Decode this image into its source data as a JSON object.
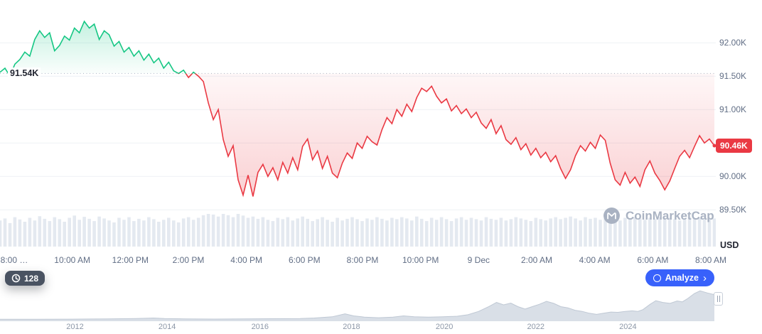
{
  "chart_data": {
    "type": "line",
    "baseline": {
      "label": "91.54K",
      "value": 91.54
    },
    "last": {
      "label": "90.46K",
      "value": 90.46
    },
    "y_unit": "USD",
    "ylim": [
      88.95,
      92.64
    ],
    "y_ticks": [
      {
        "label": "92.00K",
        "value": 92.0
      },
      {
        "label": "91.50K",
        "value": 91.5
      },
      {
        "label": "91.00K",
        "value": 91.0
      },
      {
        "label": "90.00K",
        "value": 90.0
      },
      {
        "label": "89.50K",
        "value": 89.5
      }
    ],
    "grid_values": [
      92.0,
      91.5,
      91.0,
      90.5,
      90.0,
      89.5
    ],
    "x_ticks": [
      "8:00 …",
      "10:00 AM",
      "12:00 PM",
      "2:00 PM",
      "4:00 PM",
      "6:00 PM",
      "8:00 PM",
      "10:00 PM",
      "9 Dec",
      "2:00 AM",
      "4:00 AM",
      "6:00 AM",
      "8:00 AM"
    ],
    "prices": [
      91.56,
      91.62,
      91.5,
      91.68,
      91.75,
      91.86,
      91.8,
      92.05,
      92.18,
      92.08,
      92.15,
      91.88,
      91.96,
      92.1,
      92.04,
      92.22,
      92.15,
      92.32,
      92.22,
      92.28,
      92.05,
      92.18,
      92.12,
      91.95,
      92.02,
      91.86,
      91.93,
      91.8,
      91.88,
      91.74,
      91.83,
      91.7,
      91.77,
      91.62,
      91.71,
      91.58,
      91.54,
      91.59,
      91.48,
      91.56,
      91.5,
      91.42,
      91.1,
      90.85,
      91.0,
      90.55,
      90.3,
      90.46,
      89.95,
      89.72,
      90.02,
      89.7,
      90.06,
      90.18,
      90.0,
      90.13,
      89.95,
      90.21,
      90.05,
      90.28,
      90.1,
      90.45,
      90.56,
      90.25,
      90.38,
      90.12,
      90.3,
      90.05,
      89.98,
      90.2,
      90.35,
      90.27,
      90.5,
      90.42,
      90.6,
      90.52,
      90.47,
      90.7,
      90.88,
      90.79,
      91.0,
      90.9,
      91.08,
      90.97,
      91.18,
      91.32,
      91.27,
      91.35,
      91.2,
      91.1,
      91.16,
      90.98,
      91.06,
      90.94,
      91.01,
      90.88,
      90.96,
      90.8,
      90.72,
      90.85,
      90.64,
      90.76,
      90.55,
      90.48,
      90.58,
      90.4,
      90.49,
      90.32,
      90.42,
      90.28,
      90.36,
      90.22,
      90.31,
      90.12,
      89.97,
      90.1,
      90.31,
      90.46,
      90.38,
      90.51,
      90.42,
      90.62,
      90.54,
      90.2,
      89.95,
      89.87,
      90.06,
      89.9,
      89.99,
      89.85,
      90.1,
      90.23,
      90.05,
      89.94,
      89.8,
      89.93,
      90.12,
      90.3,
      90.39,
      90.28,
      90.45,
      90.61,
      90.5,
      90.56,
      90.46
    ],
    "volume": [
      0.8,
      0.86,
      0.72,
      0.9,
      0.83,
      0.76,
      0.88,
      0.8,
      0.93,
      0.85,
      0.78,
      0.9,
      0.84,
      0.76,
      0.88,
      0.95,
      0.82,
      0.91,
      0.85,
      0.78,
      0.92,
      0.86,
      0.8,
      0.74,
      0.88,
      0.82,
      0.9,
      0.78,
      0.85,
      0.8,
      0.9,
      0.84,
      0.76,
      0.82,
      0.88,
      0.8,
      0.74,
      0.86,
      0.9,
      0.82,
      0.88,
      0.96,
      1.0,
      0.98,
      0.92,
      1.0,
      0.96,
      0.9,
      1.0,
      0.95,
      0.88,
      0.92,
      0.85,
      0.9,
      0.82,
      0.78,
      0.88,
      0.84,
      0.9,
      0.8,
      0.86,
      0.92,
      0.85,
      0.78,
      0.84,
      0.9,
      0.82,
      0.76,
      0.88,
      0.8,
      0.85,
      0.9,
      0.84,
      0.78,
      0.86,
      0.82,
      0.9,
      0.85,
      0.8,
      0.88,
      0.84,
      0.9,
      0.86,
      0.8,
      0.92,
      0.85,
      0.78,
      0.88,
      0.82,
      0.9,
      0.84,
      0.78,
      0.86,
      0.9,
      0.82,
      0.88,
      0.84,
      0.8,
      0.9,
      0.85,
      0.82,
      0.88,
      0.8,
      0.84,
      0.9,
      0.86,
      0.82,
      0.78,
      0.88,
      0.84,
      0.8,
      0.86,
      0.9,
      0.84,
      0.88,
      0.92,
      0.86,
      0.8,
      0.9,
      0.85,
      0.88,
      0.82,
      0.86,
      0.9,
      0.84,
      0.8,
      0.88,
      0.85,
      0.9,
      0.86,
      0.82,
      0.88,
      0.84,
      0.9,
      0.86,
      0.88,
      0.84,
      0.8,
      0.86,
      0.9,
      0.85,
      0.88,
      0.84,
      0.88,
      0.86
    ],
    "brush": {
      "year_ticks": [
        {
          "label": "2012",
          "t": 0.105
        },
        {
          "label": "2014",
          "t": 0.234
        },
        {
          "label": "2016",
          "t": 0.364
        },
        {
          "label": "2018",
          "t": 0.492
        },
        {
          "label": "2020",
          "t": 0.622
        },
        {
          "label": "2022",
          "t": 0.75
        },
        {
          "label": "2024",
          "t": 0.879
        }
      ],
      "points": [
        [
          0,
          0.02
        ],
        [
          0.05,
          0.02
        ],
        [
          0.1,
          0.022
        ],
        [
          0.15,
          0.03
        ],
        [
          0.19,
          0.04
        ],
        [
          0.215,
          0.06
        ],
        [
          0.23,
          0.04
        ],
        [
          0.26,
          0.03
        ],
        [
          0.3,
          0.025
        ],
        [
          0.34,
          0.03
        ],
        [
          0.38,
          0.035
        ],
        [
          0.42,
          0.04
        ],
        [
          0.44,
          0.06
        ],
        [
          0.465,
          0.1
        ],
        [
          0.483,
          0.2
        ],
        [
          0.495,
          0.13
        ],
        [
          0.51,
          0.09
        ],
        [
          0.53,
          0.07
        ],
        [
          0.55,
          0.09
        ],
        [
          0.565,
          0.13
        ],
        [
          0.58,
          0.1
        ],
        [
          0.6,
          0.09
        ],
        [
          0.62,
          0.1
        ],
        [
          0.64,
          0.12
        ],
        [
          0.655,
          0.17
        ],
        [
          0.67,
          0.28
        ],
        [
          0.685,
          0.45
        ],
        [
          0.695,
          0.58
        ],
        [
          0.705,
          0.5
        ],
        [
          0.715,
          0.56
        ],
        [
          0.725,
          0.44
        ],
        [
          0.735,
          0.36
        ],
        [
          0.745,
          0.44
        ],
        [
          0.755,
          0.52
        ],
        [
          0.765,
          0.62
        ],
        [
          0.775,
          0.55
        ],
        [
          0.785,
          0.44
        ],
        [
          0.795,
          0.4
        ],
        [
          0.805,
          0.32
        ],
        [
          0.815,
          0.28
        ],
        [
          0.825,
          0.22
        ],
        [
          0.835,
          0.18
        ],
        [
          0.845,
          0.22
        ],
        [
          0.855,
          0.26
        ],
        [
          0.865,
          0.25
        ],
        [
          0.875,
          0.28
        ],
        [
          0.885,
          0.3
        ],
        [
          0.893,
          0.28
        ],
        [
          0.9,
          0.34
        ],
        [
          0.91,
          0.52
        ],
        [
          0.918,
          0.64
        ],
        [
          0.928,
          0.58
        ],
        [
          0.938,
          0.55
        ],
        [
          0.948,
          0.63
        ],
        [
          0.955,
          0.6
        ],
        [
          0.962,
          0.7
        ],
        [
          0.972,
          0.88
        ],
        [
          0.98,
          0.97
        ],
        [
          0.99,
          0.9
        ],
        [
          1,
          0.84
        ]
      ]
    },
    "colors": {
      "up": "#16c784",
      "down": "#ea3943",
      "accent_blue": "#3861fb",
      "pill_dark": "#4a5362",
      "grid": "#eef1f6",
      "baseline_dotted": "#a9b3c2",
      "axis_text": "#616e85",
      "volume_bar": "#e4e9f0",
      "brush_fill": "#d9dfe7",
      "brush_stroke": "#bfc8d4",
      "watermark": "#a9b2c2",
      "label_dark": "#222531"
    }
  },
  "controls": {
    "counter_label": "128",
    "analyze_label": "Analyze",
    "analyze_chevron": "›"
  },
  "watermark": {
    "text": "CoinMarketCap"
  }
}
